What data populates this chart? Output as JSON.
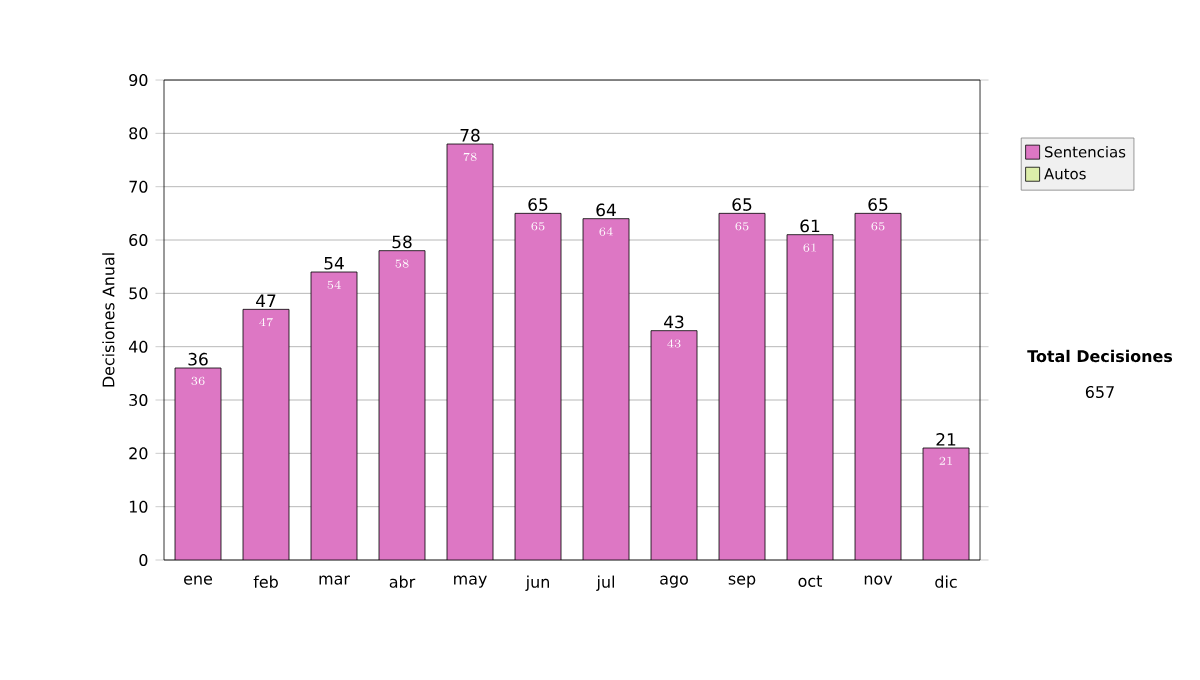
{
  "chart_data": {
    "type": "bar",
    "ylabel": "Decisiones Anual",
    "categories": [
      "ene",
      "feb",
      "mar",
      "abr",
      "may",
      "jun",
      "jul",
      "ago",
      "sep",
      "oct",
      "nov",
      "dic"
    ],
    "series": [
      {
        "name": "Sentencias",
        "color": "#dd77c4",
        "values": [
          36,
          47,
          54,
          58,
          78,
          65,
          64,
          43,
          65,
          61,
          65,
          21
        ]
      },
      {
        "name": "Autos",
        "color": "#ddeeaa",
        "values": [
          null,
          null,
          null,
          null,
          null,
          null,
          null,
          null,
          null,
          null,
          null,
          null
        ]
      }
    ],
    "ylim": [
      0,
      90
    ],
    "yticks": [
      0,
      10,
      20,
      30,
      40,
      50,
      60,
      70,
      80,
      90
    ],
    "grid": "y",
    "legend": "right",
    "data_labels": true,
    "totals": [
      "36",
      "47",
      "54",
      "58",
      "78",
      "65",
      "64",
      "43",
      "65",
      "61",
      "65",
      "21"
    ],
    "annotations": [
      "Total Decisiones",
      "657"
    ]
  }
}
